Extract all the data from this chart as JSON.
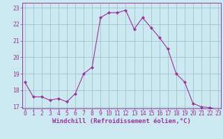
{
  "x": [
    0,
    1,
    2,
    3,
    4,
    5,
    6,
    7,
    8,
    9,
    10,
    11,
    12,
    13,
    14,
    15,
    16,
    17,
    18,
    19,
    20,
    21,
    22,
    23
  ],
  "y": [
    18.5,
    17.6,
    17.6,
    17.4,
    17.5,
    17.3,
    17.8,
    19.0,
    19.4,
    22.4,
    22.7,
    22.7,
    22.85,
    21.7,
    22.4,
    21.8,
    21.2,
    20.5,
    19.0,
    18.5,
    17.2,
    17.0,
    16.95,
    16.8
  ],
  "line_color": "#993399",
  "marker": "D",
  "marker_size": 2.0,
  "bg_color": "#cce8f0",
  "grid_color": "#99bbcc",
  "xlabel": "Windchill (Refroidissement éolien,°C)",
  "ylabel": "",
  "ylim": [
    16.9,
    23.3
  ],
  "xlim": [
    -0.3,
    23.3
  ],
  "yticks": [
    17,
    18,
    19,
    20,
    21,
    22,
    23
  ],
  "xticks": [
    0,
    1,
    2,
    3,
    4,
    5,
    6,
    7,
    8,
    9,
    10,
    11,
    12,
    13,
    14,
    15,
    16,
    17,
    18,
    19,
    20,
    21,
    22,
    23
  ],
  "xlabel_fontsize": 6.5,
  "tick_fontsize": 5.8
}
